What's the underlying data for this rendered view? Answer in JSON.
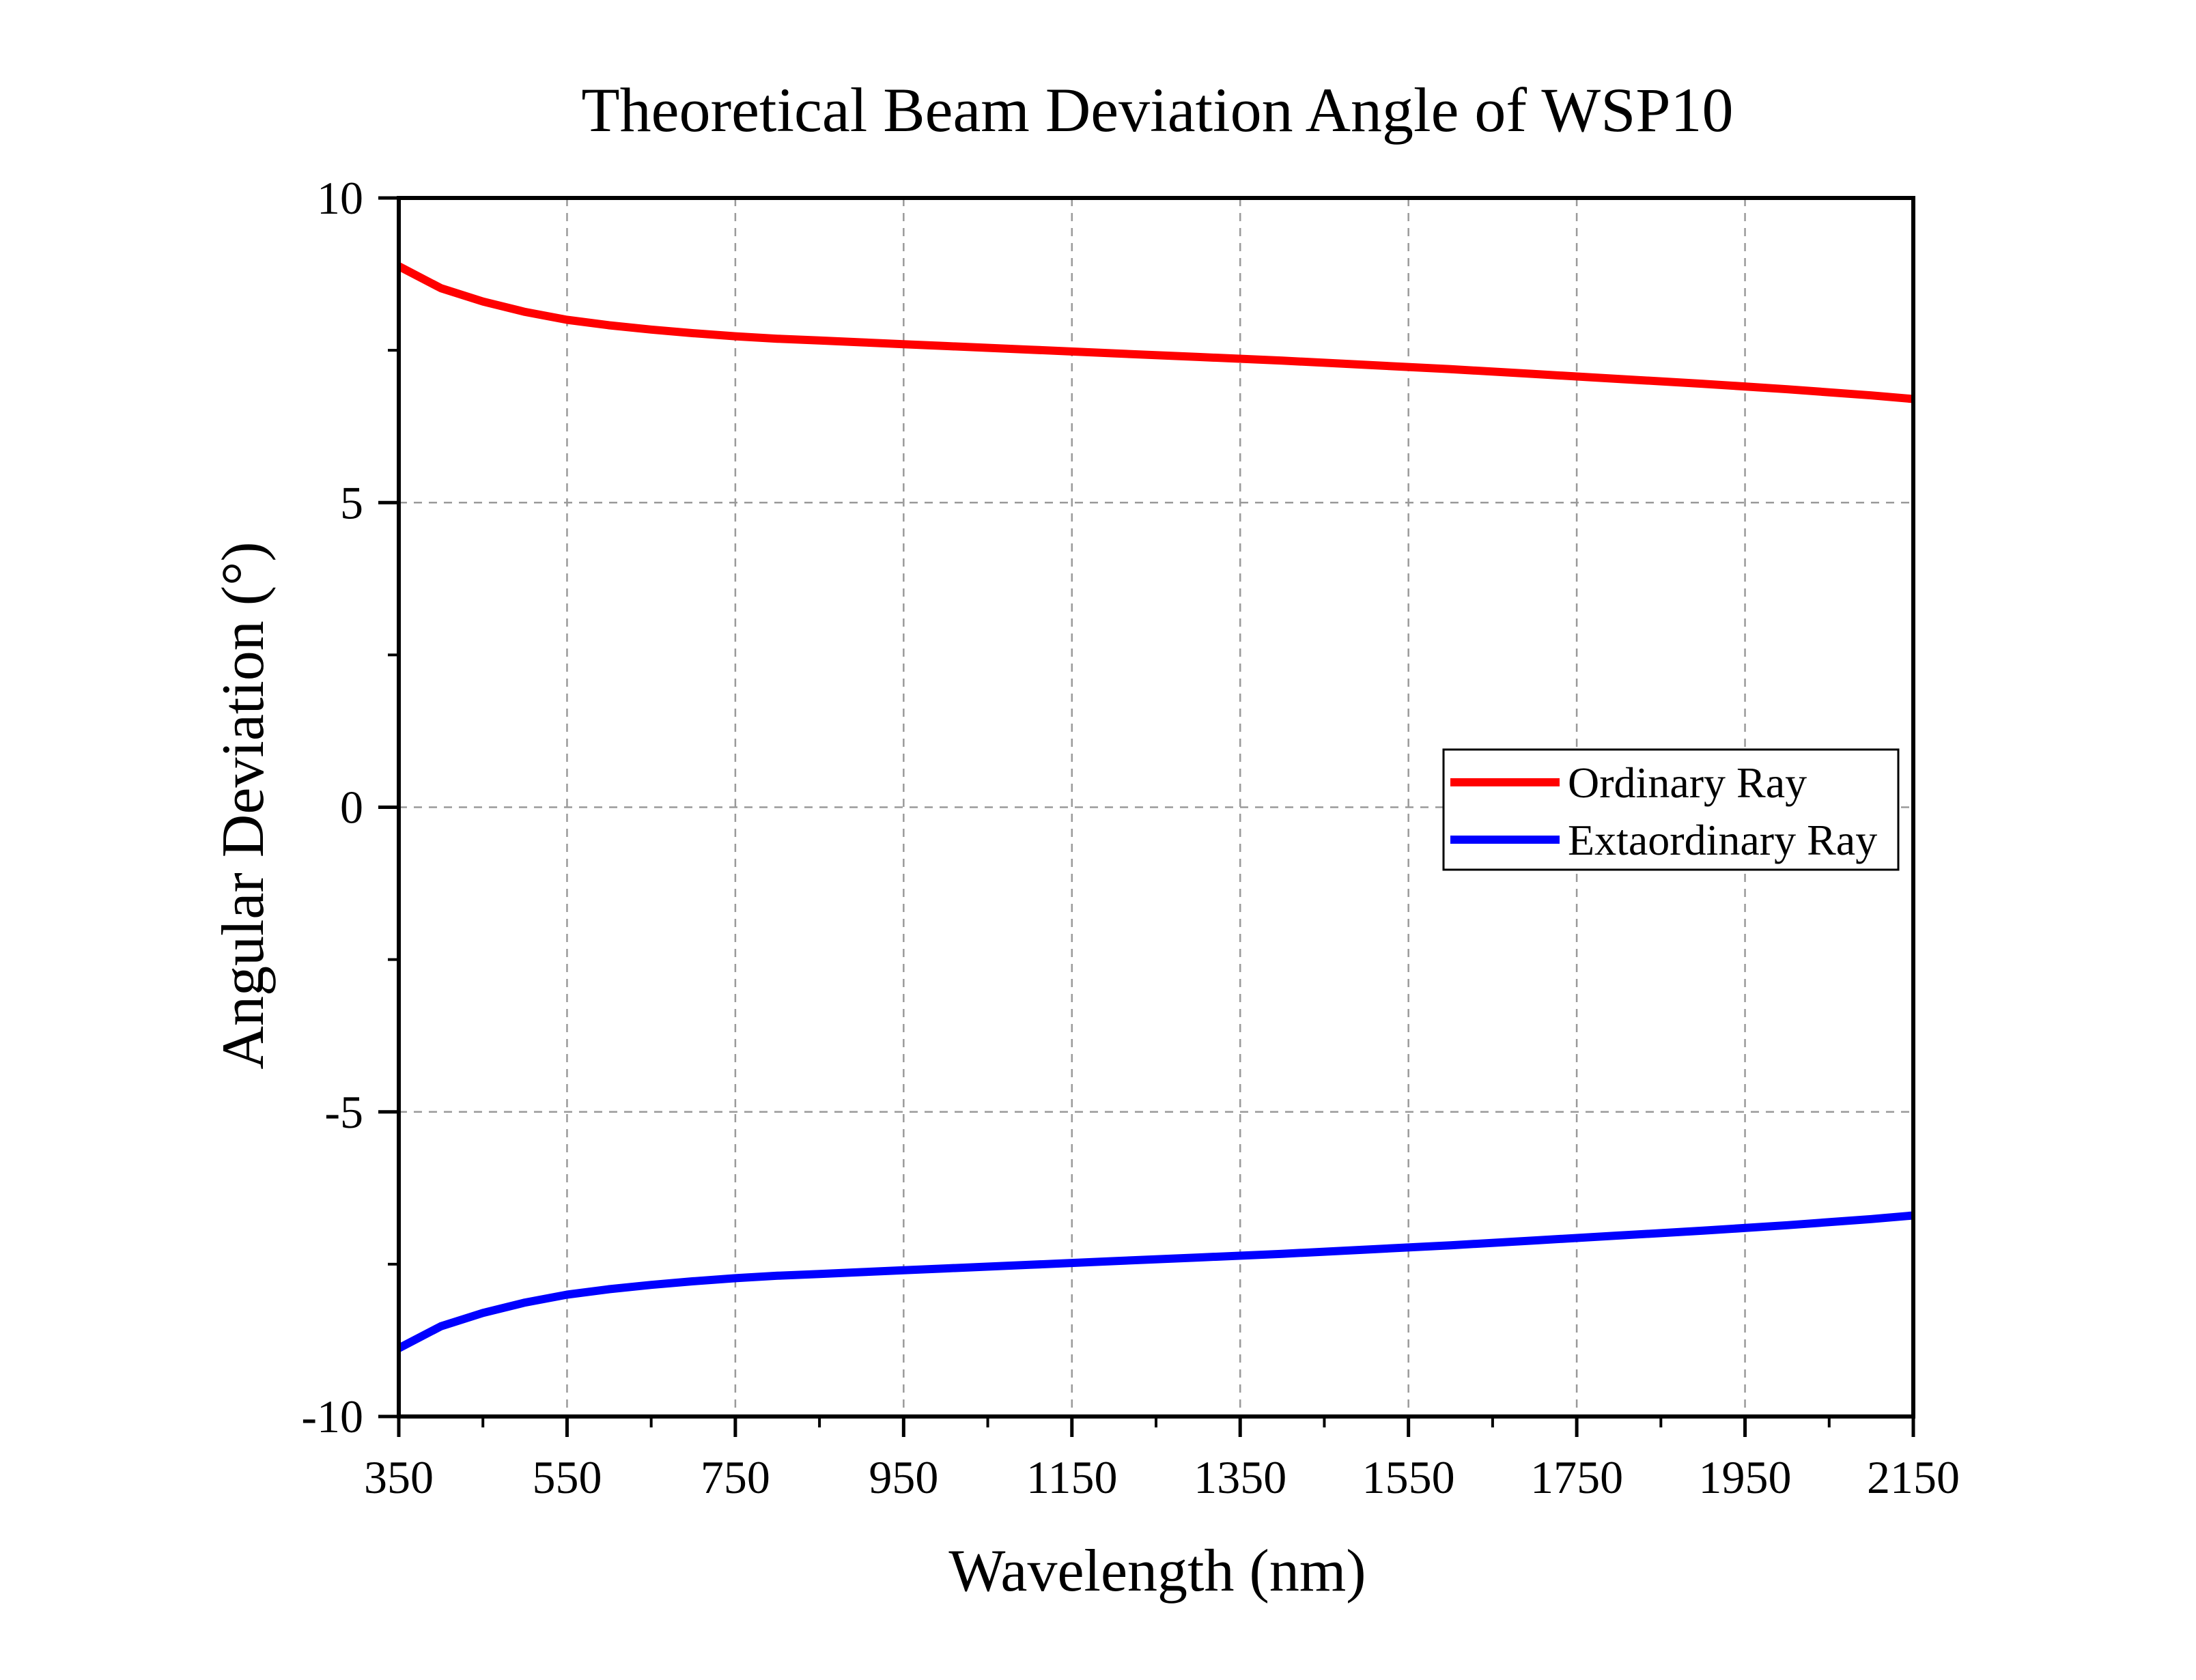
{
  "chart_data": {
    "type": "line",
    "title": "Theoretical Beam Deviation Angle of WSP10",
    "xlabel": "Wavelength (nm)",
    "ylabel": "Angular Deviation (°)",
    "xlim": [
      350,
      2150
    ],
    "ylim": [
      -10,
      10
    ],
    "x_ticks": [
      350,
      550,
      750,
      950,
      1150,
      1350,
      1550,
      1750,
      1950,
      2150
    ],
    "x_tick_labels": [
      "350",
      "550",
      "750",
      "950",
      "1150",
      "1350",
      "1550",
      "1750",
      "1950",
      "2150"
    ],
    "y_ticks": [
      -10,
      -5,
      0,
      5,
      10
    ],
    "y_tick_labels": [
      "-10",
      "-5",
      "0",
      "5",
      "10"
    ],
    "grid": true,
    "legend_position": "right",
    "series": [
      {
        "name": "Ordinary Ray",
        "color": "#ff0000",
        "x": [
          350,
          400,
          450,
          500,
          550,
          600,
          650,
          700,
          750,
          800,
          850,
          900,
          950,
          1000,
          1100,
          1200,
          1300,
          1400,
          1500,
          1600,
          1700,
          1800,
          1900,
          2000,
          2100,
          2150
        ],
        "y": [
          8.88,
          8.52,
          8.3,
          8.13,
          8.0,
          7.91,
          7.84,
          7.78,
          7.73,
          7.69,
          7.66,
          7.63,
          7.6,
          7.57,
          7.51,
          7.45,
          7.39,
          7.33,
          7.26,
          7.19,
          7.11,
          7.03,
          6.95,
          6.86,
          6.76,
          6.7
        ]
      },
      {
        "name": "Extaordinary Ray",
        "color": "#0000ff",
        "x": [
          350,
          400,
          450,
          500,
          550,
          600,
          650,
          700,
          750,
          800,
          850,
          900,
          950,
          1000,
          1100,
          1200,
          1300,
          1400,
          1500,
          1600,
          1700,
          1800,
          1900,
          2000,
          2100,
          2150
        ],
        "y": [
          -8.88,
          -8.52,
          -8.3,
          -8.13,
          -8.0,
          -7.91,
          -7.84,
          -7.78,
          -7.73,
          -7.69,
          -7.66,
          -7.63,
          -7.6,
          -7.57,
          -7.51,
          -7.45,
          -7.39,
          -7.33,
          -7.26,
          -7.19,
          -7.11,
          -7.03,
          -6.95,
          -6.86,
          -6.76,
          -6.7
        ]
      }
    ]
  }
}
